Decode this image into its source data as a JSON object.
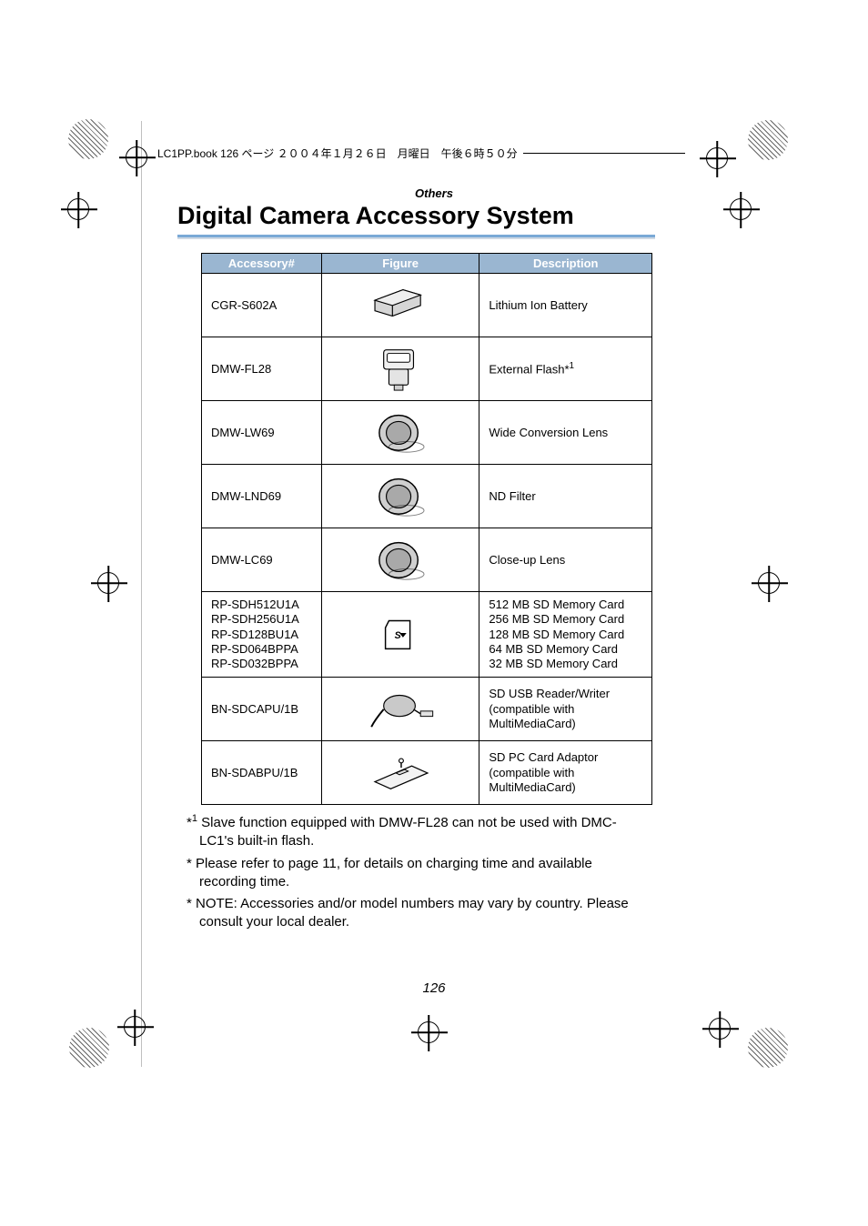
{
  "bookline": "LC1PP.book  126 ページ  ２００４年１月２６日　月曜日　午後６時５０分",
  "section_label": "Others",
  "title": "Digital Camera Accessory System",
  "headers": {
    "acc": "Accessory#",
    "fig": "Figure",
    "desc": "Description"
  },
  "rows": [
    {
      "acc": "CGR-S602A",
      "desc": "Lithium Ion Battery",
      "fig": "battery"
    },
    {
      "acc": "DMW-FL28",
      "desc_html": "External Flash*<span class='sup'>1</span>",
      "fig": "flash"
    },
    {
      "acc": "DMW-LW69",
      "desc": "Wide Conversion Lens",
      "fig": "lens"
    },
    {
      "acc": "DMW-LND69",
      "desc": "ND Filter",
      "fig": "lens"
    },
    {
      "acc": "DMW-LC69",
      "desc": "Close-up Lens",
      "fig": "lens"
    },
    {
      "acc_multi": [
        "RP-SDH512U1A",
        "RP-SDH256U1A",
        "RP-SD128BU1A",
        "RP-SD064BPPA",
        "RP-SD032BPPA"
      ],
      "desc_multi": [
        "512 MB SD Memory Card",
        "256 MB SD Memory Card",
        "128 MB SD Memory Card",
        "64 MB SD Memory Card",
        "32 MB SD Memory Card"
      ],
      "fig": "sdcard"
    },
    {
      "acc": "BN-SDCAPU/1B",
      "desc_multi": [
        "SD USB Reader/Writer",
        "(compatible with",
        "MultiMediaCard)"
      ],
      "fig": "reader"
    },
    {
      "acc": "BN-SDABPU/1B",
      "desc_multi": [
        "SD PC Card Adaptor",
        "(compatible with",
        "MultiMediaCard)"
      ],
      "fig": "pccard"
    }
  ],
  "footnotes": [
    {
      "mark_html": "*<span class='fn-sup'>1</span>",
      "text": "Slave function equipped with DMW-FL28 can not be used with DMC-LC1's built-in flash."
    },
    {
      "mark": "*",
      "text": "Please refer to page 11, for details on charging time and available recording time."
    },
    {
      "mark": "*",
      "text": "NOTE:  Accessories and/or model numbers may vary by country. Please consult your local dealer."
    }
  ],
  "page_number": "126",
  "colors": {
    "header_bg": "#9ab6d1",
    "title_rule_top": "#7aa9d6"
  }
}
